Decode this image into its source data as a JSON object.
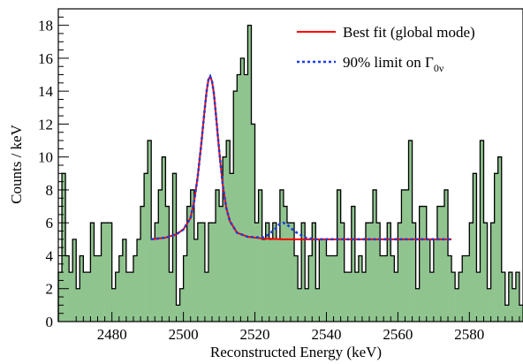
{
  "chart_data": {
    "type": "histogram",
    "xlabel": "Reconstructed Energy (keV)",
    "ylabel": "Counts / keV",
    "xlim": [
      2465,
      2595
    ],
    "ylim": [
      0,
      19
    ],
    "x_ticks": [
      "2480",
      "2500",
      "2520",
      "2540",
      "2560",
      "2580"
    ],
    "y_ticks": [
      "0",
      "2",
      "4",
      "6",
      "8",
      "10",
      "12",
      "14",
      "16",
      "18"
    ],
    "bin_start": 2465,
    "bin_width": 1,
    "histogram_counts": [
      3,
      9,
      4,
      3,
      5,
      2,
      4,
      3,
      3,
      6,
      4,
      4,
      6,
      6,
      6,
      2,
      3,
      4,
      5,
      3,
      3,
      4,
      5,
      7,
      9,
      11,
      5,
      6,
      8,
      10,
      7,
      3,
      9,
      1,
      2,
      4,
      7,
      8,
      5,
      6,
      6,
      3,
      6,
      6,
      8,
      7,
      10,
      11,
      9,
      14,
      15,
      16,
      15,
      18,
      12,
      6,
      8,
      5,
      6,
      5,
      6,
      5,
      8,
      7,
      6,
      6,
      4,
      2,
      6,
      2,
      4,
      6,
      2,
      5,
      5,
      4,
      4,
      4,
      8,
      6,
      3,
      3,
      7,
      3,
      4,
      3,
      6,
      6,
      8,
      6,
      4,
      4,
      6,
      4,
      3,
      6,
      8,
      8,
      11,
      6,
      2,
      7,
      7,
      5,
      3,
      5,
      7,
      7,
      8,
      4,
      3,
      2,
      3,
      4,
      4,
      6,
      9,
      3,
      11,
      6,
      2,
      6,
      9,
      10,
      3,
      1,
      3,
      2,
      3,
      1
    ],
    "series": [
      {
        "name": "Best fit (global mode)",
        "color": "#ff0000",
        "style": "solid",
        "x": [
          2491,
          2495,
          2498,
          2500,
          2502,
          2503,
          2504,
          2505,
          2505.5,
          2506,
          2506.5,
          2507,
          2507.5,
          2508,
          2508.5,
          2509,
          2510,
          2511,
          2512,
          2513,
          2515,
          2518,
          2522,
          2528,
          2535,
          2545,
          2555,
          2565,
          2575
        ],
        "y": [
          5.0,
          5.1,
          5.3,
          5.6,
          6.3,
          7.3,
          8.8,
          10.8,
          11.9,
          13.0,
          14.0,
          14.7,
          14.9,
          14.6,
          13.9,
          12.8,
          10.4,
          8.3,
          6.9,
          6.1,
          5.4,
          5.15,
          5.05,
          5.0,
          5.0,
          5.0,
          5.0,
          5.0,
          5.0
        ]
      },
      {
        "name": "90% limit on Γ0ν",
        "legend_symbol": "Γ",
        "legend_subscript": "0ν",
        "legend_prefix": "90% limit on ",
        "color": "#1a3fe0",
        "style": "dotted",
        "x": [
          2491,
          2495,
          2498,
          2500,
          2502,
          2503,
          2504,
          2505,
          2505.5,
          2506,
          2506.5,
          2507,
          2507.5,
          2508,
          2508.5,
          2509,
          2510,
          2511,
          2512,
          2513,
          2515,
          2518,
          2522,
          2524,
          2526,
          2527,
          2528,
          2529,
          2531,
          2534,
          2537,
          2545,
          2555,
          2565,
          2575
        ],
        "y": [
          5.0,
          5.1,
          5.3,
          5.6,
          6.3,
          7.3,
          8.8,
          10.8,
          11.9,
          13.0,
          14.0,
          14.7,
          14.9,
          14.6,
          13.9,
          12.8,
          10.4,
          8.3,
          6.9,
          6.1,
          5.4,
          5.15,
          5.1,
          5.3,
          5.7,
          5.95,
          6.0,
          5.9,
          5.5,
          5.1,
          5.0,
          5.0,
          5.0,
          5.0,
          5.0
        ]
      }
    ],
    "histogram_fill": "#8fc48f",
    "histogram_line": "#000000",
    "legend_position": "top-right",
    "grid": false
  }
}
